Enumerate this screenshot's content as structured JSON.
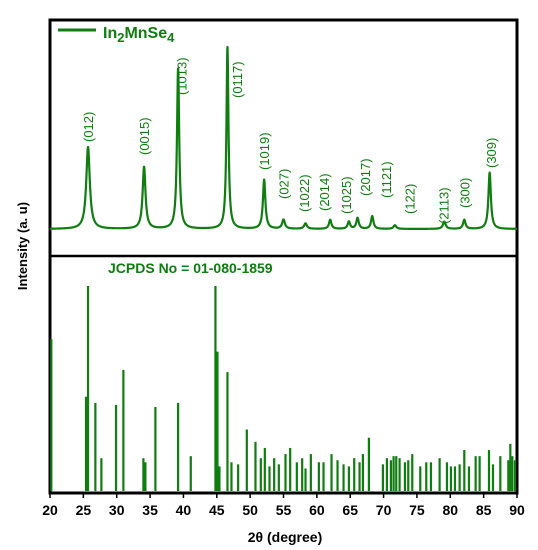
{
  "colors": {
    "series": "#0f7d0f",
    "axis": "#000000"
  },
  "chart_data": [
    {
      "type": "line",
      "panel": "top",
      "legend": "In2MnSe4",
      "legend_main": "In",
      "legend_sub1": "2",
      "legend_mid": "MnSe",
      "legend_sub2": "4",
      "legend_position": "top-left",
      "xlim": [
        20,
        90
      ],
      "grid": false,
      "peaks": [
        {
          "x": 25.7,
          "h": 0.45,
          "w": 0.32
        },
        {
          "x": 34.1,
          "h": 0.34,
          "w": 0.26
        },
        {
          "x": 39.2,
          "h": 0.88,
          "w": 0.2
        },
        {
          "x": 46.6,
          "h": 1.0,
          "w": 0.18
        },
        {
          "x": 52.1,
          "h": 0.27,
          "w": 0.22
        },
        {
          "x": 55.0,
          "h": 0.05,
          "w": 0.25
        },
        {
          "x": 58.3,
          "h": 0.03,
          "w": 0.25
        },
        {
          "x": 62.0,
          "h": 0.05,
          "w": 0.22
        },
        {
          "x": 64.8,
          "h": 0.04,
          "w": 0.22
        },
        {
          "x": 66.1,
          "h": 0.06,
          "w": 0.22
        },
        {
          "x": 68.3,
          "h": 0.07,
          "w": 0.22
        },
        {
          "x": 71.7,
          "h": 0.02,
          "w": 0.25
        },
        {
          "x": 79.1,
          "h": 0.04,
          "w": 0.25
        },
        {
          "x": 82.1,
          "h": 0.05,
          "w": 0.22
        },
        {
          "x": 85.9,
          "h": 0.31,
          "w": 0.22
        }
      ],
      "annotations": [
        {
          "x": 25.7,
          "label": "(012)"
        },
        {
          "x": 34.1,
          "label": "(0015)"
        },
        {
          "x": 39.7,
          "label": "(1013)"
        },
        {
          "x": 48.0,
          "label": "(0117)"
        },
        {
          "x": 52.1,
          "label": "(1019)"
        },
        {
          "x": 55.0,
          "label": "(027)"
        },
        {
          "x": 58.1,
          "label": "(1022)"
        },
        {
          "x": 61.1,
          "label": "(2014)"
        },
        {
          "x": 64.4,
          "label": "(1025)"
        },
        {
          "x": 67.2,
          "label": "(2017)"
        },
        {
          "x": 70.4,
          "label": "(1121)"
        },
        {
          "x": 73.9,
          "label": "(122)"
        },
        {
          "x": 79.0,
          "label": "(2113)"
        },
        {
          "x": 82.1,
          "label": "(300)"
        },
        {
          "x": 86.1,
          "label": "(309)"
        }
      ]
    },
    {
      "type": "bar",
      "panel": "bottom",
      "label": "JCPDS No = 01-080-1859",
      "xlim": [
        20,
        90
      ],
      "xticks": [
        "20",
        "25",
        "30",
        "35",
        "40",
        "45",
        "50",
        "55",
        "60",
        "65",
        "70",
        "75",
        "80",
        "85",
        "90"
      ],
      "xlabel": "2θ (degree)",
      "ylabel": "Intensity (a. u)",
      "grid": false,
      "x": [
        20.2,
        25.4,
        25.7,
        26.8,
        27.7,
        29.9,
        31.0,
        34.0,
        34.3,
        35.8,
        39.2,
        41.1,
        44.8,
        45.1,
        45.4,
        46.6,
        47.2,
        48.2,
        49.5,
        50.8,
        51.6,
        52.2,
        52.9,
        53.6,
        54.3,
        55.3,
        56.0,
        57.0,
        57.8,
        58.3,
        59.1,
        60.3,
        61.0,
        62.2,
        63.1,
        64.0,
        64.8,
        65.6,
        66.4,
        66.9,
        67.8,
        69.9,
        70.5,
        71.1,
        71.5,
        71.9,
        72.4,
        73.2,
        73.7,
        74.3,
        75.5,
        76.4,
        77.1,
        78.4,
        79.5,
        80.1,
        80.7,
        81.4,
        82.1,
        82.8,
        83.8,
        84.4,
        85.8,
        86.4,
        87.5,
        88.7,
        89.0,
        89.3,
        89.7
      ],
      "values": [
        0.74,
        0.46,
        1.0,
        0.43,
        0.16,
        0.42,
        0.59,
        0.16,
        0.14,
        0.41,
        0.43,
        0.17,
        1.0,
        0.68,
        0.12,
        0.58,
        0.14,
        0.13,
        0.3,
        0.24,
        0.16,
        0.21,
        0.12,
        0.16,
        0.13,
        0.18,
        0.21,
        0.14,
        0.16,
        0.11,
        0.18,
        0.14,
        0.14,
        0.18,
        0.15,
        0.13,
        0.12,
        0.16,
        0.14,
        0.18,
        0.26,
        0.13,
        0.16,
        0.15,
        0.17,
        0.17,
        0.16,
        0.14,
        0.15,
        0.18,
        0.12,
        0.14,
        0.14,
        0.16,
        0.14,
        0.12,
        0.12,
        0.13,
        0.2,
        0.12,
        0.17,
        0.17,
        0.2,
        0.13,
        0.17,
        0.15,
        0.23,
        0.17,
        0.15
      ]
    }
  ]
}
